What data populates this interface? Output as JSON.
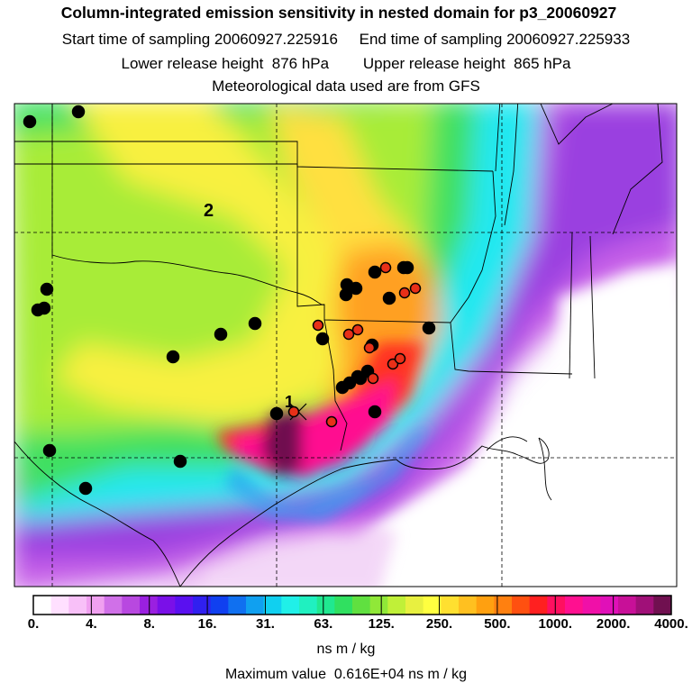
{
  "title": "Column-integrated emission sensitivity in nested domain for p3_20060927",
  "line2": "Start time of sampling 20060927.225916     End time of sampling 20060927.225933",
  "line3": "Lower release height  876 hPa        Upper release height  865 hPa",
  "line4": "Meteorological data used are from GFS",
  "map_labels": {
    "label_1": "1",
    "label_2": "2"
  },
  "colorbar": {
    "colors": [
      "#ffffff",
      "#ffe0ff",
      "#f8c0f8",
      "#f0a0f0",
      "#d070e8",
      "#b848e0",
      "#9a20e0",
      "#7a10e8",
      "#5a10f0",
      "#3020f0",
      "#1040f0",
      "#1070f0",
      "#10a0f0",
      "#10d0f0",
      "#20f0e8",
      "#20f0c0",
      "#20e890",
      "#30e060",
      "#60e040",
      "#90e838",
      "#c0f038",
      "#e8f040",
      "#ffff40",
      "#ffe030",
      "#ffc020",
      "#ffa010",
      "#ff8010",
      "#ff5010",
      "#ff2020",
      "#ff1060",
      "#ff1090",
      "#f010a8",
      "#e010b8",
      "#c81098",
      "#a01078",
      "#701050"
    ],
    "ticks": [
      "0.",
      "4.",
      "8.",
      "16.",
      "31.",
      "63.",
      "125.",
      "250.",
      "500.",
      "1000.",
      "2000.",
      "4000."
    ],
    "units": "ns m / kg"
  },
  "max_value_text": "Maximum value  0.616E+04 ns m / kg",
  "markers": {
    "black": [
      [
        33,
        135
      ],
      [
        87,
        124
      ],
      [
        52,
        321
      ],
      [
        42,
        344
      ],
      [
        49,
        342
      ],
      [
        283,
        359
      ],
      [
        245,
        371
      ],
      [
        192,
        396
      ],
      [
        55,
        500
      ],
      [
        200,
        512
      ],
      [
        95,
        542
      ],
      [
        385,
        316
      ],
      [
        395,
        320
      ],
      [
        416,
        302
      ],
      [
        448,
        297
      ],
      [
        452,
        297
      ],
      [
        432,
        331
      ],
      [
        384,
        327
      ],
      [
        358,
        376
      ],
      [
        476,
        364
      ],
      [
        413,
        383
      ],
      [
        408,
        412
      ],
      [
        400,
        420
      ],
      [
        388,
        425
      ],
      [
        380,
        430
      ],
      [
        397,
        418
      ],
      [
        416,
        457
      ],
      [
        307,
        459
      ]
    ],
    "red": [
      [
        428,
        297
      ],
      [
        449,
        325
      ],
      [
        461,
        320
      ],
      [
        353,
        361
      ],
      [
        387,
        371
      ],
      [
        397,
        366
      ],
      [
        410,
        386
      ],
      [
        436,
        404
      ],
      [
        444,
        398
      ],
      [
        414,
        420
      ],
      [
        368,
        468
      ],
      [
        326,
        457
      ]
    ]
  }
}
